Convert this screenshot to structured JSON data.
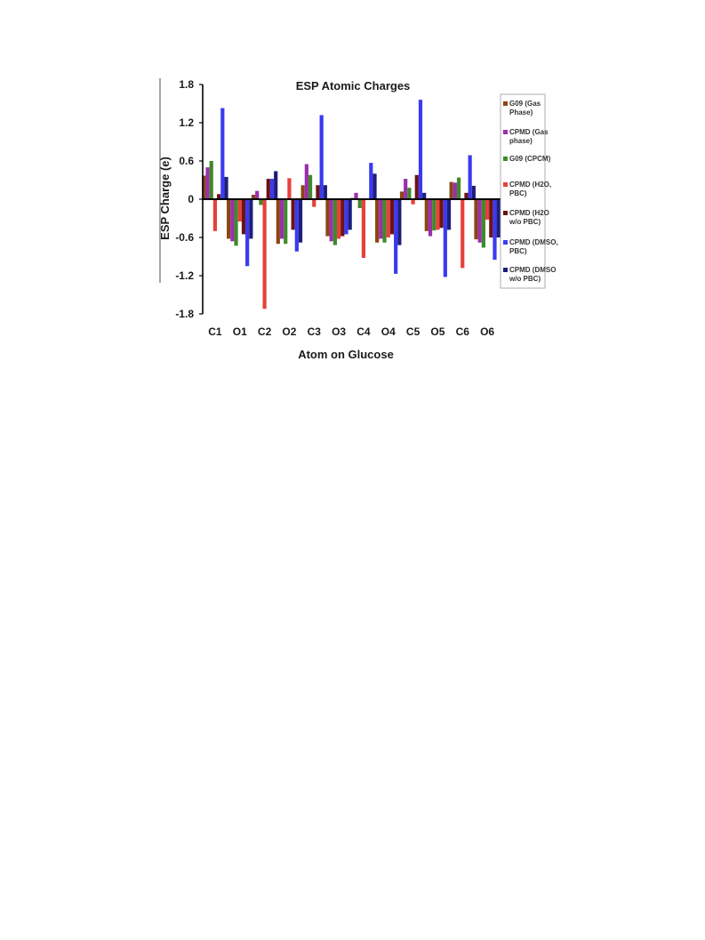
{
  "chart_data": {
    "type": "bar",
    "title": "ESP Atomic Charges",
    "xlabel": "Atom on Glucose",
    "ylabel": "ESP Charge (e)",
    "ylim": [
      -1.8,
      1.8
    ],
    "yticks": [
      "1.8",
      "1.2",
      "0.6",
      "0",
      "-0.6",
      "-1.2",
      "-1.8"
    ],
    "grid": false,
    "legend_position": "right",
    "categories": [
      "C1",
      "O1",
      "C2",
      "O2",
      "C3",
      "O3",
      "C4",
      "O4",
      "C5",
      "O5",
      "C6",
      "O6"
    ],
    "series": [
      {
        "name": [
          "G09 (Gas",
          "Phase)"
        ],
        "color": "#8b4513",
        "values": [
          0.37,
          -0.62,
          0.07,
          -0.7,
          0.22,
          -0.58,
          0.02,
          -0.68,
          0.12,
          -0.5,
          0.27,
          -0.63
        ]
      },
      {
        "name": [
          "CPMD (Gas",
          "phase)"
        ],
        "color": "#9b2fae",
        "values": [
          0.5,
          -0.66,
          0.13,
          -0.62,
          0.55,
          -0.66,
          0.1,
          -0.62,
          0.32,
          -0.58,
          0.26,
          -0.68
        ]
      },
      {
        "name": [
          "G09 (CPCM)"
        ],
        "color": "#3f8a2a",
        "values": [
          0.6,
          -0.73,
          -0.09,
          -0.7,
          0.38,
          -0.72,
          -0.14,
          -0.68,
          0.18,
          -0.49,
          0.34,
          -0.76
        ]
      },
      {
        "name": [
          "CPMD (H2O,",
          "PBC)"
        ],
        "color": "#e8403a",
        "values": [
          -0.5,
          -0.35,
          -1.72,
          0.33,
          -0.12,
          -0.62,
          -0.92,
          -0.6,
          -0.08,
          -0.48,
          -1.08,
          -0.32
        ]
      },
      {
        "name": [
          "CPMD (H2O",
          "w/o PBC)"
        ],
        "color": "#6b1414",
        "values": [
          0.08,
          -0.55,
          0.32,
          -0.48,
          0.22,
          -0.58,
          0.0,
          -0.55,
          0.38,
          -0.45,
          0.1,
          -0.6
        ]
      },
      {
        "name": [
          "CPMD (DMSO,",
          "PBC)"
        ],
        "color": "#3a3af0",
        "values": [
          1.43,
          -1.05,
          0.32,
          -0.82,
          1.32,
          -0.55,
          0.57,
          -1.17,
          1.56,
          -1.22,
          0.69,
          -0.95
        ]
      },
      {
        "name": [
          "CPMD (DMSO",
          "w/o PBC)"
        ],
        "color": "#1e1e7a",
        "values": [
          0.35,
          -0.62,
          0.44,
          -0.68,
          0.22,
          -0.48,
          0.4,
          -0.72,
          0.1,
          -0.48,
          0.21,
          -0.6
        ]
      }
    ]
  }
}
